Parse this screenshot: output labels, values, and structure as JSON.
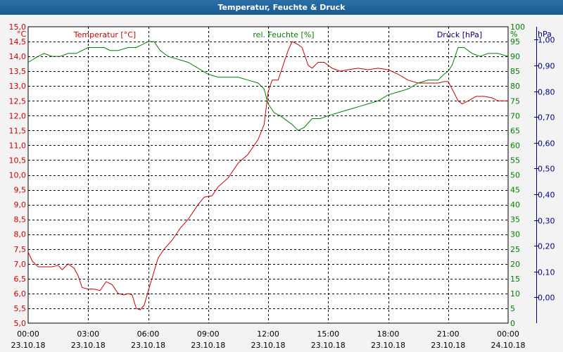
{
  "window": {
    "title": "Temperatur, Feuchte & Druck"
  },
  "chart_data": {
    "type": "line",
    "x_labels": [
      {
        "time": "00:00",
        "date": "23.10.18"
      },
      {
        "time": "03:00",
        "date": "23.10.18"
      },
      {
        "time": "06:00",
        "date": "23.10.18"
      },
      {
        "time": "09:00",
        "date": "23.10.18"
      },
      {
        "time": "12:00",
        "date": "23.10.18"
      },
      {
        "time": "15:00",
        "date": "23.10.18"
      },
      {
        "time": "18:00",
        "date": "23.10.18"
      },
      {
        "time": "21:00",
        "date": "23.10.18"
      },
      {
        "time": "00:00",
        "date": "24.10.18"
      }
    ],
    "xlim_hours": [
      0,
      24
    ],
    "grid": true,
    "axes": {
      "left": {
        "unit": "°C",
        "title": "Temperatur [°C]",
        "color": "#cc0000",
        "ylim": [
          5.0,
          15.0
        ],
        "step": 0.5,
        "decimals": 1
      },
      "mid": {
        "unit": "%",
        "title": "rel. Feuchte [%]",
        "color": "#008000",
        "ylim": [
          0,
          100
        ],
        "step": 5,
        "decimals": 0
      },
      "right": {
        "unit": "hPa",
        "title": "Druck [hPa]",
        "color": "#000080",
        "ylim": [
          -0.1,
          1.05
        ],
        "step": 0.1,
        "decimals": 2,
        "tick_start": 0.0,
        "tick_end": 1.0
      }
    },
    "series": [
      {
        "axis": "left",
        "color": "#cc0000",
        "points": [
          [
            0.0,
            7.4
          ],
          [
            0.2,
            7.1
          ],
          [
            0.5,
            6.9
          ],
          [
            0.8,
            6.9
          ],
          [
            1.2,
            6.9
          ],
          [
            1.5,
            6.95
          ],
          [
            1.7,
            6.8
          ],
          [
            2.0,
            7.0
          ],
          [
            2.3,
            6.85
          ],
          [
            2.5,
            6.6
          ],
          [
            2.7,
            6.2
          ],
          [
            3.0,
            6.15
          ],
          [
            3.3,
            6.15
          ],
          [
            3.6,
            6.1
          ],
          [
            3.9,
            6.4
          ],
          [
            4.2,
            6.3
          ],
          [
            4.5,
            6.0
          ],
          [
            4.8,
            5.95
          ],
          [
            5.0,
            6.0
          ],
          [
            5.2,
            5.95
          ],
          [
            5.4,
            5.5
          ],
          [
            5.6,
            5.45
          ],
          [
            5.8,
            5.6
          ],
          [
            6.1,
            6.3
          ],
          [
            6.5,
            7.2
          ],
          [
            6.8,
            7.5
          ],
          [
            7.2,
            7.8
          ],
          [
            7.6,
            8.2
          ],
          [
            8.0,
            8.5
          ],
          [
            8.5,
            9.0
          ],
          [
            8.8,
            9.25
          ],
          [
            9.2,
            9.3
          ],
          [
            9.5,
            9.6
          ],
          [
            10.0,
            9.9
          ],
          [
            10.5,
            10.4
          ],
          [
            11.0,
            10.7
          ],
          [
            11.5,
            11.2
          ],
          [
            11.8,
            11.7
          ],
          [
            12.0,
            12.8
          ],
          [
            12.2,
            13.2
          ],
          [
            12.5,
            13.2
          ],
          [
            12.8,
            13.8
          ],
          [
            13.0,
            14.2
          ],
          [
            13.2,
            14.5
          ],
          [
            13.5,
            14.4
          ],
          [
            13.7,
            14.3
          ],
          [
            14.0,
            13.7
          ],
          [
            14.2,
            13.6
          ],
          [
            14.5,
            13.8
          ],
          [
            14.8,
            13.8
          ],
          [
            15.2,
            13.6
          ],
          [
            15.6,
            13.5
          ],
          [
            16.0,
            13.55
          ],
          [
            16.5,
            13.6
          ],
          [
            17.0,
            13.55
          ],
          [
            17.5,
            13.6
          ],
          [
            18.0,
            13.55
          ],
          [
            18.5,
            13.4
          ],
          [
            19.0,
            13.2
          ],
          [
            19.5,
            13.1
          ],
          [
            20.0,
            13.1
          ],
          [
            20.5,
            13.1
          ],
          [
            20.8,
            13.15
          ],
          [
            21.0,
            13.15
          ],
          [
            21.2,
            12.9
          ],
          [
            21.5,
            12.5
          ],
          [
            21.7,
            12.4
          ],
          [
            22.0,
            12.5
          ],
          [
            22.4,
            12.65
          ],
          [
            22.8,
            12.65
          ],
          [
            23.2,
            12.6
          ],
          [
            23.5,
            12.5
          ],
          [
            24.0,
            12.5
          ]
        ]
      },
      {
        "axis": "mid",
        "color": "#008000",
        "points": [
          [
            0.0,
            88
          ],
          [
            0.5,
            90
          ],
          [
            0.8,
            91
          ],
          [
            1.2,
            90
          ],
          [
            1.6,
            90
          ],
          [
            2.0,
            91
          ],
          [
            2.4,
            91
          ],
          [
            2.7,
            92
          ],
          [
            3.0,
            93
          ],
          [
            3.4,
            93
          ],
          [
            3.8,
            93
          ],
          [
            4.1,
            92
          ],
          [
            4.5,
            92
          ],
          [
            5.0,
            93
          ],
          [
            5.4,
            93
          ],
          [
            5.7,
            94
          ],
          [
            6.0,
            95
          ],
          [
            6.3,
            95
          ],
          [
            6.6,
            92
          ],
          [
            7.0,
            90
          ],
          [
            7.5,
            89
          ],
          [
            8.0,
            88
          ],
          [
            8.5,
            86
          ],
          [
            9.0,
            84
          ],
          [
            9.5,
            83
          ],
          [
            10.0,
            83
          ],
          [
            10.5,
            83
          ],
          [
            11.0,
            82
          ],
          [
            11.5,
            81
          ],
          [
            11.8,
            79
          ],
          [
            12.0,
            74
          ],
          [
            12.3,
            71
          ],
          [
            12.6,
            70
          ],
          [
            13.0,
            68
          ],
          [
            13.2,
            67
          ],
          [
            13.5,
            65
          ],
          [
            13.8,
            66
          ],
          [
            14.2,
            69
          ],
          [
            14.6,
            69
          ],
          [
            15.0,
            70
          ],
          [
            15.5,
            71
          ],
          [
            16.0,
            72
          ],
          [
            16.5,
            73
          ],
          [
            17.0,
            74
          ],
          [
            17.5,
            75
          ],
          [
            18.0,
            77
          ],
          [
            18.5,
            78
          ],
          [
            19.0,
            79
          ],
          [
            19.5,
            81
          ],
          [
            20.0,
            82
          ],
          [
            20.5,
            82
          ],
          [
            20.8,
            84
          ],
          [
            21.0,
            85
          ],
          [
            21.2,
            87
          ],
          [
            21.5,
            93
          ],
          [
            21.8,
            93
          ],
          [
            22.2,
            91
          ],
          [
            22.6,
            90
          ],
          [
            23.0,
            91
          ],
          [
            23.5,
            91
          ],
          [
            24.0,
            90
          ]
        ]
      }
    ]
  }
}
